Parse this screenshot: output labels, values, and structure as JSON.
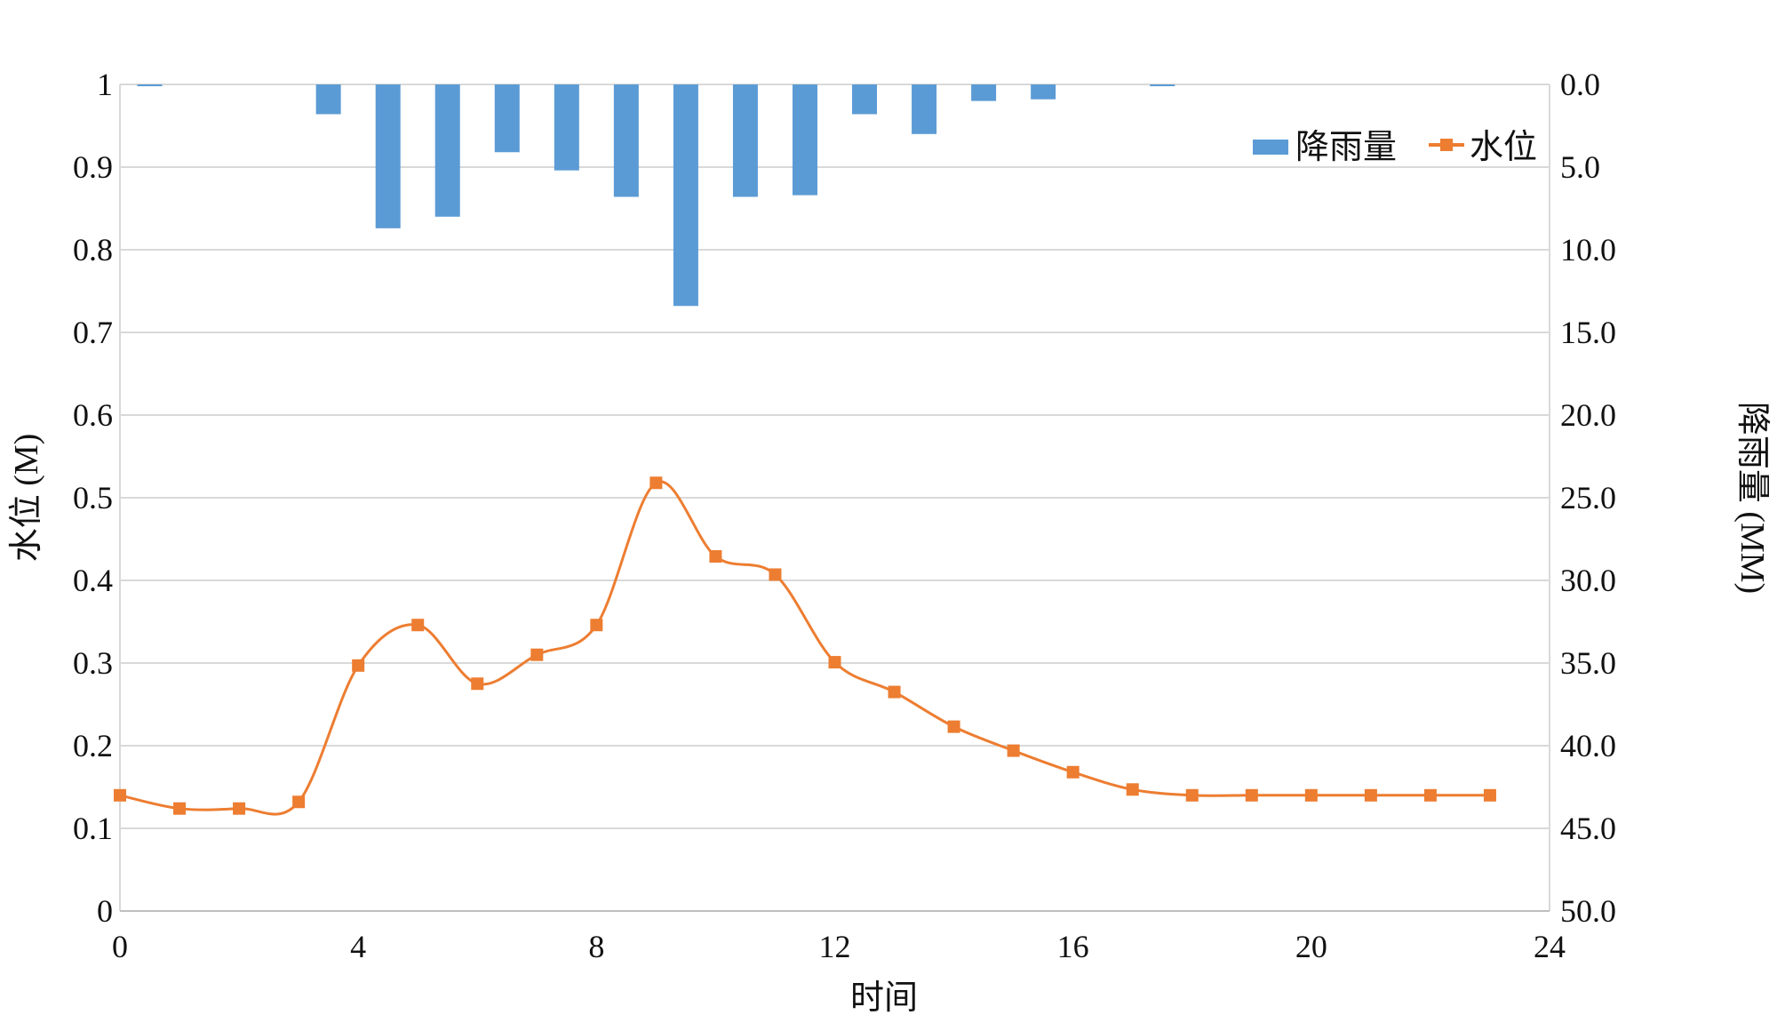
{
  "chart_data": {
    "type": "bar+line",
    "xlabel": "时间",
    "ylabel_left": "水位 (M)",
    "ylabel_right": "降雨量 (MM)",
    "xlim": [
      0,
      24
    ],
    "xticks": [
      "0",
      "4",
      "8",
      "12",
      "16",
      "20",
      "24"
    ],
    "ylim_left": [
      0,
      1
    ],
    "yticks_left": [
      "0",
      "0.1",
      "0.2",
      "0.3",
      "0.4",
      "0.5",
      "0.6",
      "0.7",
      "0.8",
      "0.9",
      "1"
    ],
    "ylim_right": [
      0,
      50
    ],
    "right_axis_inverted": true,
    "yticks_right": [
      "0.0",
      "5.0",
      "10.0",
      "15.0",
      "20.0",
      "25.0",
      "30.0",
      "35.0",
      "40.0",
      "45.0",
      "50.0"
    ],
    "grid": true,
    "legend_position": "top-right",
    "series": [
      {
        "name": "降雨量",
        "type": "bar",
        "axis": "right",
        "color": "#5b9bd5",
        "x": [
          0.5,
          1.5,
          2.5,
          3.5,
          4.5,
          5.5,
          6.5,
          7.5,
          8.5,
          9.5,
          10.5,
          11.5,
          12.5,
          13.5,
          14.5,
          15.5,
          16.5,
          17.5,
          18.5,
          19.5,
          20.5,
          21.5,
          22.5
        ],
        "values": [
          0.1,
          0,
          0,
          1.8,
          8.7,
          8.0,
          4.1,
          5.2,
          6.8,
          13.4,
          6.8,
          6.7,
          1.8,
          3.0,
          1.0,
          0.9,
          0,
          0.1,
          0,
          0,
          0,
          0,
          0
        ]
      },
      {
        "name": "水位",
        "type": "line",
        "axis": "left",
        "color": "#ed7d31",
        "marker": "square",
        "x": [
          0,
          1,
          2,
          3,
          4,
          5,
          6,
          7,
          8,
          9,
          10,
          11,
          12,
          13,
          14,
          15,
          16,
          17,
          18,
          19,
          20,
          21,
          22,
          23
        ],
        "values": [
          0.14,
          0.124,
          0.124,
          0.132,
          0.297,
          0.346,
          0.275,
          0.31,
          0.346,
          0.518,
          0.429,
          0.407,
          0.301,
          0.265,
          0.223,
          0.194,
          0.168,
          0.147,
          0.14,
          0.14,
          0.14,
          0.14,
          0.14,
          0.14
        ]
      }
    ]
  }
}
